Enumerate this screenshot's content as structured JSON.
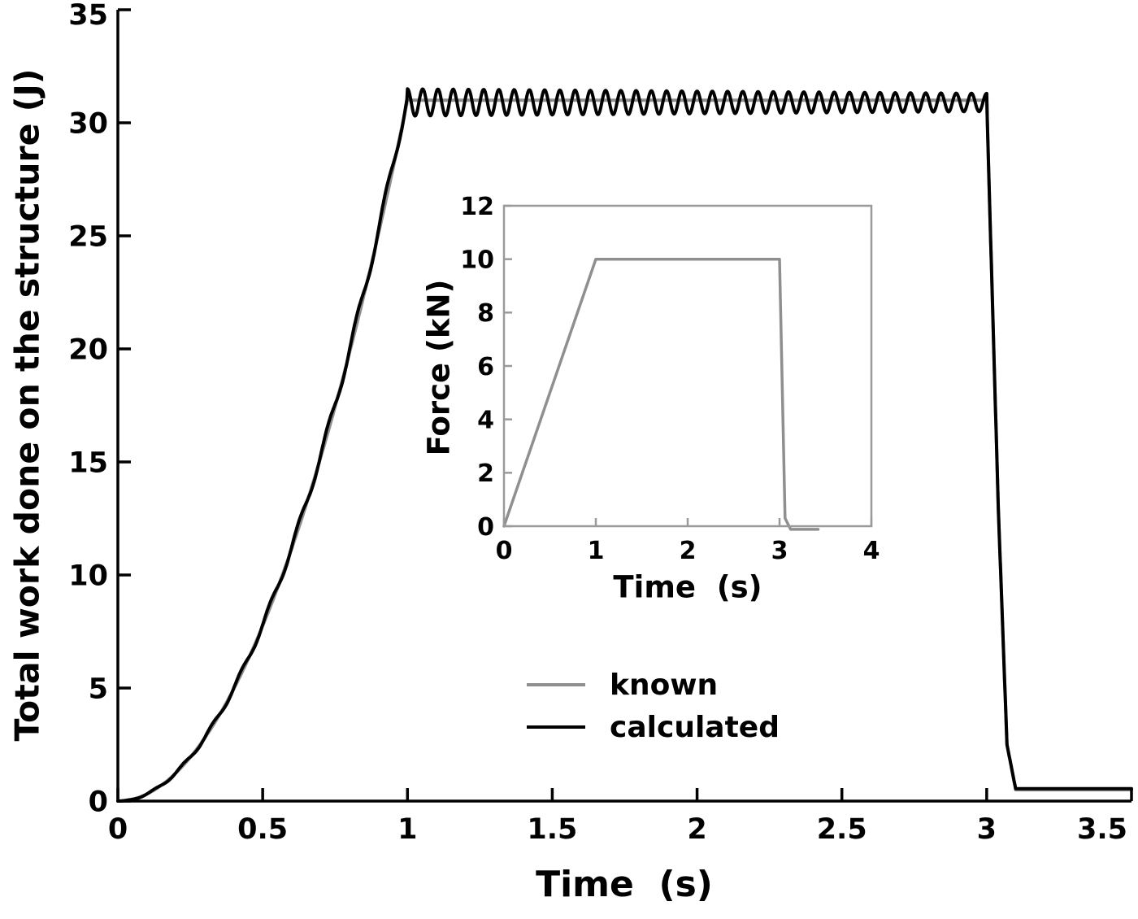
{
  "figure": {
    "background": "#ffffff",
    "axis_color": "#000000",
    "inset_frame_color": "#9a9a9a"
  },
  "chart_data": [
    {
      "id": "main-work-plot",
      "type": "line",
      "title": "",
      "xlabel": "Time  (s)",
      "ylabel": "Total work done on the structure (J)",
      "xlim": [
        0,
        3.5
      ],
      "ylim": [
        0,
        35
      ],
      "grid": false,
      "legend_position": "inside-lower-center",
      "xticks": [
        {
          "v": 0,
          "label": "0"
        },
        {
          "v": 0.5,
          "label": "0.5"
        },
        {
          "v": 1,
          "label": "1"
        },
        {
          "v": 1.5,
          "label": "1.5"
        },
        {
          "v": 2,
          "label": "2"
        },
        {
          "v": 2.5,
          "label": "2.5"
        },
        {
          "v": 3,
          "label": "3"
        },
        {
          "v": 3.5,
          "label": "3.5"
        }
      ],
      "yticks": [
        {
          "v": 0,
          "label": "0"
        },
        {
          "v": 5,
          "label": "5"
        },
        {
          "v": 10,
          "label": "10"
        },
        {
          "v": 15,
          "label": "15"
        },
        {
          "v": 20,
          "label": "20"
        },
        {
          "v": 25,
          "label": "25"
        },
        {
          "v": 30,
          "label": "30"
        },
        {
          "v": 35,
          "label": "35"
        }
      ],
      "series": [
        {
          "name": "known",
          "color": "#8f8f8f",
          "width": 4,
          "generator": {
            "dt": 0.002,
            "t_max": 3.5,
            "rise_end_t": 1,
            "rise_power": 2,
            "peak": 31.0,
            "rise_ripple_amp": 0,
            "rise_ripple_freq": 0,
            "plateau_end_t": 3,
            "plateau_mean": 31.0,
            "osc_amp_start": 0,
            "osc_amp_end": 0,
            "osc_freq": 0,
            "drop_t": [
              3,
              3.04,
              3.07,
              3.1,
              3.5
            ],
            "drop_w": [
              31.0,
              13,
              2.5,
              0.5,
              0.5
            ]
          }
        },
        {
          "name": "calculated",
          "color": "#000000",
          "width": 4,
          "generator": {
            "dt": 0.002,
            "t_max": 3.5,
            "rise_end_t": 1,
            "rise_power": 2,
            "peak": 31.2,
            "rise_ripple_amp": 0.3,
            "rise_ripple_freq": 10,
            "plateau_end_t": 3,
            "plateau_mean": 30.9,
            "osc_amp_start": 0.6,
            "osc_amp_end": 0.4,
            "osc_freq": 19,
            "drop_t": [
              3,
              3.04,
              3.07,
              3.1,
              3.5
            ],
            "drop_w": [
              31.0,
              13,
              2.5,
              0.55,
              0.55
            ]
          }
        }
      ]
    },
    {
      "id": "force-inset-plot",
      "type": "line",
      "title": "",
      "xlabel": "Time  (s)",
      "ylabel": "Force (kN)",
      "xlim": [
        0,
        4
      ],
      "ylim": [
        0,
        12
      ],
      "grid": false,
      "frame": "box",
      "frame_color": "#9a9a9a",
      "xticks": [
        {
          "v": 0,
          "label": "0"
        },
        {
          "v": 1,
          "label": "1"
        },
        {
          "v": 2,
          "label": "2"
        },
        {
          "v": 3,
          "label": "3"
        },
        {
          "v": 4,
          "label": "4"
        }
      ],
      "yticks": [
        {
          "v": 0,
          "label": "0"
        },
        {
          "v": 2,
          "label": "2"
        },
        {
          "v": 4,
          "label": "4"
        },
        {
          "v": 6,
          "label": "6"
        },
        {
          "v": 8,
          "label": "8"
        },
        {
          "v": 10,
          "label": "10"
        },
        {
          "v": 12,
          "label": "12"
        }
      ],
      "series": [
        {
          "name": "force",
          "color": "#8f8f8f",
          "width": 3.5,
          "points": {
            "x": [
              0,
              1,
              3,
              3.06,
              3.12,
              3.42
            ],
            "y": [
              0,
              10,
              10,
              0.3,
              -0.12,
              -0.12
            ]
          }
        }
      ]
    }
  ]
}
